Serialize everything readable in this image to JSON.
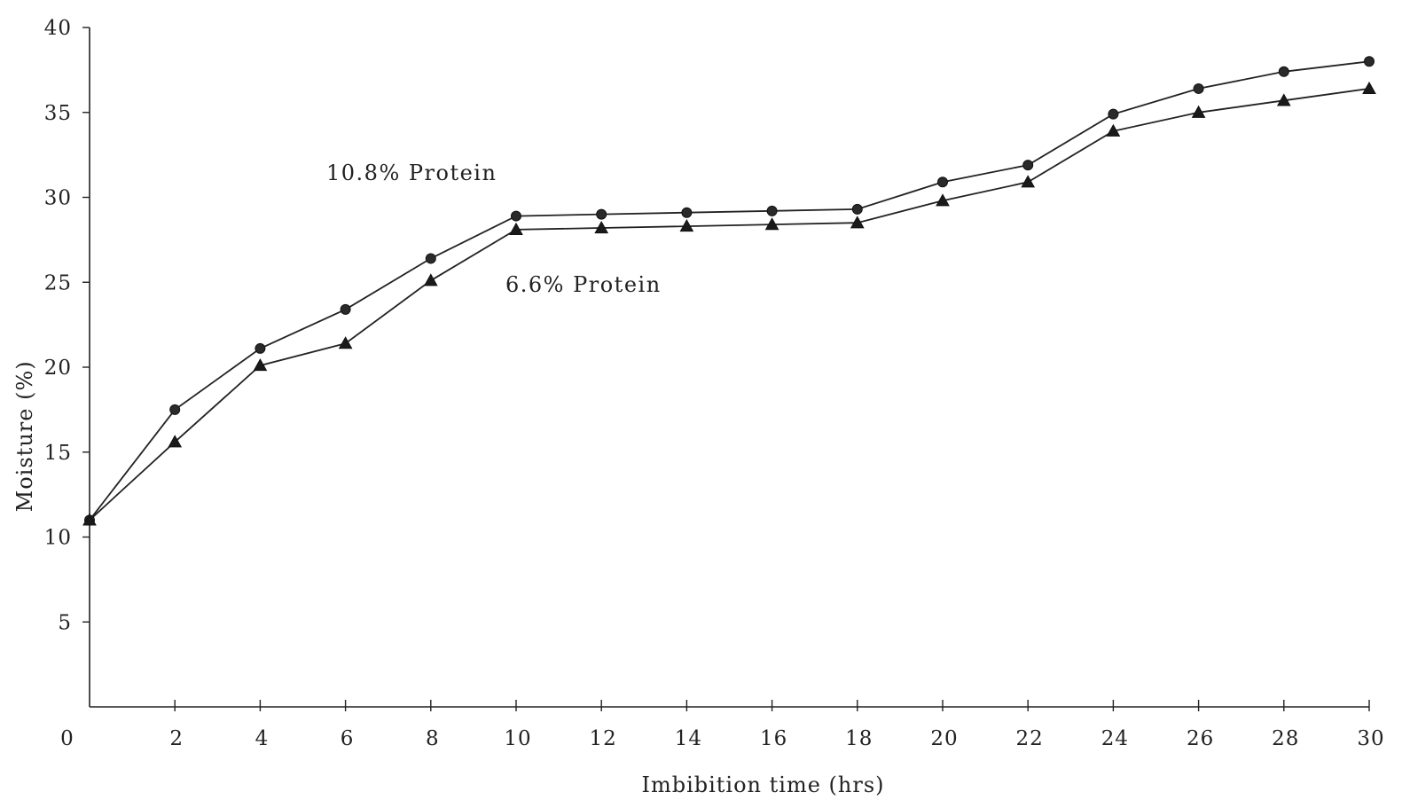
{
  "chart_data": {
    "type": "line",
    "xlabel": "Imbibition time (hrs)",
    "ylabel": "Moisture (%)",
    "xlim": [
      0,
      30
    ],
    "ylim": [
      0,
      40
    ],
    "x_ticks": [
      0,
      2,
      4,
      6,
      8,
      10,
      12,
      14,
      16,
      18,
      20,
      22,
      24,
      26,
      28,
      30
    ],
    "y_ticks": [
      5,
      10,
      15,
      20,
      25,
      30,
      35,
      40
    ],
    "x_tick_labels": [
      "0",
      "2",
      "4",
      "6",
      "8",
      "10",
      "12",
      "14",
      "16",
      "18",
      "20",
      "22",
      "24",
      "26",
      "28",
      "30"
    ],
    "y_tick_labels": [
      "5",
      "10",
      "15",
      "20",
      "25",
      "30",
      "35",
      "40"
    ],
    "grid": false,
    "x": [
      0,
      2,
      4,
      6,
      8,
      10,
      12,
      14,
      16,
      18,
      20,
      22,
      24,
      26,
      28,
      30
    ],
    "series": [
      {
        "name": "10.8% Protein",
        "marker": "circle",
        "values": [
          11.0,
          17.5,
          21.1,
          23.4,
          26.4,
          28.9,
          29.0,
          29.1,
          29.2,
          29.3,
          30.9,
          31.9,
          34.9,
          36.4,
          37.4,
          38.0
        ]
      },
      {
        "name": "6.6% Protein",
        "marker": "triangle",
        "values": [
          11.0,
          15.6,
          20.1,
          21.4,
          25.1,
          28.1,
          28.2,
          28.3,
          28.4,
          28.5,
          29.8,
          30.9,
          33.9,
          35.0,
          35.7,
          36.4
        ]
      }
    ]
  }
}
